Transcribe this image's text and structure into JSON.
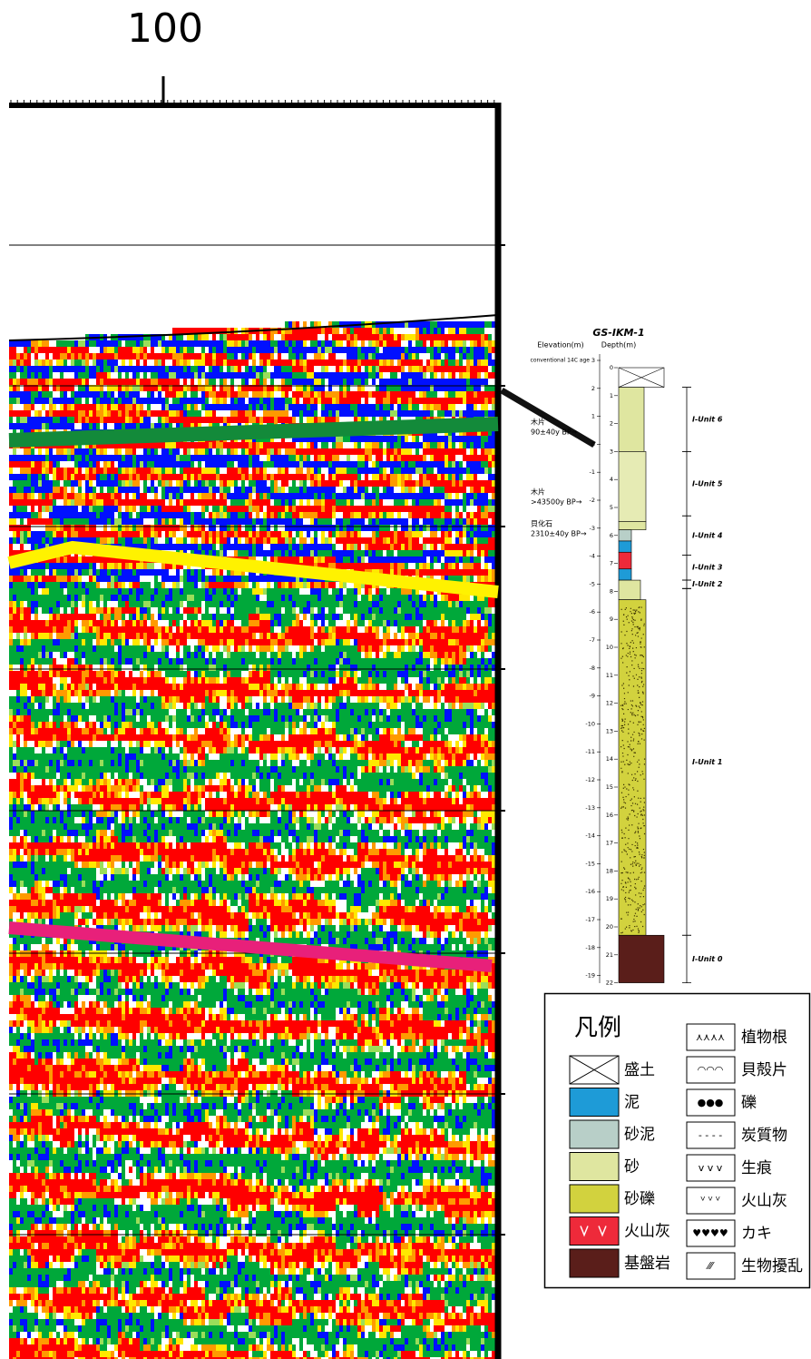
{
  "profile": {
    "distance_label": "100"
  },
  "log": {
    "title": "GS-IKM-1",
    "elevation_header": "Elevation(m)",
    "depth_header": "Depth(m)",
    "age_header": "conventional 14C age",
    "elevation_ticks": [
      3,
      2,
      1,
      0,
      -1,
      -2,
      -3,
      -4,
      -5,
      -6,
      -7,
      -8,
      -9,
      -10,
      -11,
      -12,
      -13,
      -14,
      -15,
      -16,
      -17,
      -18,
      -19
    ],
    "depth_ticks": [
      0,
      1,
      2,
      3,
      4,
      5,
      6,
      7,
      8,
      9,
      10,
      11,
      12,
      13,
      14,
      15,
      16,
      17,
      18,
      19,
      20,
      21,
      22
    ],
    "dates": [
      {
        "material": "木片",
        "age": "90±40y BP→"
      },
      {
        "material": "木片",
        "age": ">43500y BP→"
      },
      {
        "material": "貝化石",
        "age": "2310±40y BP→"
      }
    ],
    "units": [
      "I-Unit 6",
      "I-Unit 5",
      "I-Unit 4",
      "I-Unit 3",
      "I-Unit 2",
      "I-Unit 1",
      "I-Unit 0"
    ]
  },
  "legend": {
    "title": "凡例",
    "left": [
      "盛土",
      "泥",
      "砂泥",
      "砂",
      "砂礫",
      "火山灰",
      "基盤岩"
    ],
    "right": [
      "植物根",
      "貝殻片",
      "礫",
      "炭質物",
      "生痕",
      "火山灰",
      "カキ",
      "生物擾乱"
    ]
  }
}
